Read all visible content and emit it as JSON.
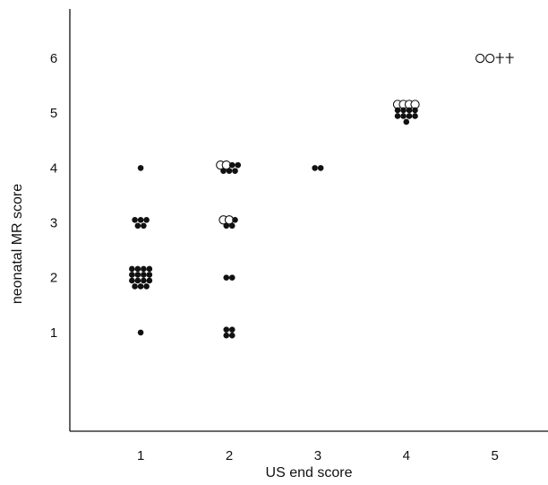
{
  "chart_data": {
    "type": "scatter",
    "title": "",
    "xlabel": "US end score",
    "ylabel": "neonatal MR score",
    "xlim": [
      0.2,
      5.6
    ],
    "ylim": [
      -0.8,
      6.9
    ],
    "x_ticks": [
      1,
      2,
      3,
      4,
      5
    ],
    "y_ticks": [
      1,
      2,
      3,
      4,
      5,
      6
    ],
    "grid": false,
    "marker_legend": {
      "filled-circle": "",
      "open-circle": "",
      "dagger": ""
    },
    "groups": [
      {
        "x": 1,
        "y": 1,
        "filled": 1,
        "open": 0,
        "dagger": 0
      },
      {
        "x": 1,
        "y": 2,
        "filled": 15,
        "open": 0,
        "dagger": 0
      },
      {
        "x": 1,
        "y": 3,
        "filled": 5,
        "open": 0,
        "dagger": 0
      },
      {
        "x": 1,
        "y": 4,
        "filled": 1,
        "open": 0,
        "dagger": 0
      },
      {
        "x": 2,
        "y": 1,
        "filled": 4,
        "open": 0,
        "dagger": 0
      },
      {
        "x": 2,
        "y": 2,
        "filled": 2,
        "open": 0,
        "dagger": 0
      },
      {
        "x": 2,
        "y": 3,
        "filled": 3,
        "open": 2,
        "dagger": 0
      },
      {
        "x": 2,
        "y": 4,
        "filled": 5,
        "open": 2,
        "dagger": 0
      },
      {
        "x": 3,
        "y": 4,
        "filled": 2,
        "open": 0,
        "dagger": 0
      },
      {
        "x": 4,
        "y": 5,
        "filled": 9,
        "open": 4,
        "dagger": 0
      },
      {
        "x": 5,
        "y": 6,
        "filled": 0,
        "open": 2,
        "dagger": 2
      }
    ]
  }
}
